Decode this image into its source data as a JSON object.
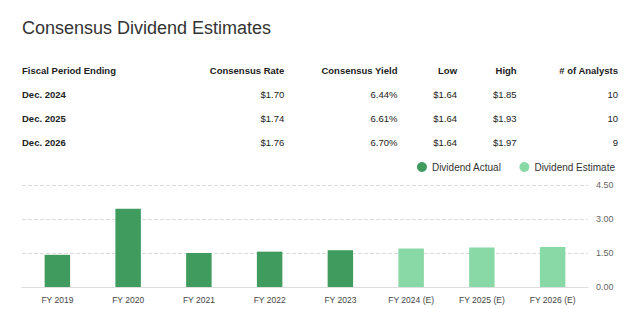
{
  "title": "Consensus Dividend Estimates",
  "table": {
    "columns": [
      "Fiscal Period Ending",
      "Consensus Rate",
      "Consensus Yield",
      "Low",
      "High",
      "# of Analysts"
    ],
    "rows": [
      [
        "Dec. 2024",
        "$1.70",
        "6.44%",
        "$1.64",
        "$1.85",
        "10"
      ],
      [
        "Dec. 2025",
        "$1.74",
        "6.61%",
        "$1.64",
        "$1.93",
        "10"
      ],
      [
        "Dec. 2026",
        "$1.76",
        "6.70%",
        "$1.64",
        "$1.97",
        "9"
      ]
    ]
  },
  "chart_data": {
    "type": "bar",
    "categories": [
      "FY 2019",
      "FY 2020",
      "FY 2021",
      "FY 2022",
      "FY 2023",
      "FY 2024 (E)",
      "FY 2025 (E)",
      "FY 2026 (E)"
    ],
    "series": [
      {
        "name": "Dividend Actual",
        "color": "#3f9b5e",
        "values": [
          1.42,
          3.45,
          1.5,
          1.56,
          1.62,
          null,
          null,
          null
        ]
      },
      {
        "name": "Dividend Estimate",
        "color": "#89d9a6",
        "values": [
          null,
          null,
          null,
          null,
          null,
          1.7,
          1.74,
          1.76
        ]
      }
    ],
    "ylim": [
      0,
      4.5
    ],
    "yticks": [
      {
        "value": 0,
        "label": "0.00"
      },
      {
        "value": 1.5,
        "label": "1.50"
      },
      {
        "value": 3,
        "label": "3.00"
      },
      {
        "value": 4.5,
        "label": "4.50"
      }
    ],
    "grid": true,
    "legend": "upper right"
  }
}
